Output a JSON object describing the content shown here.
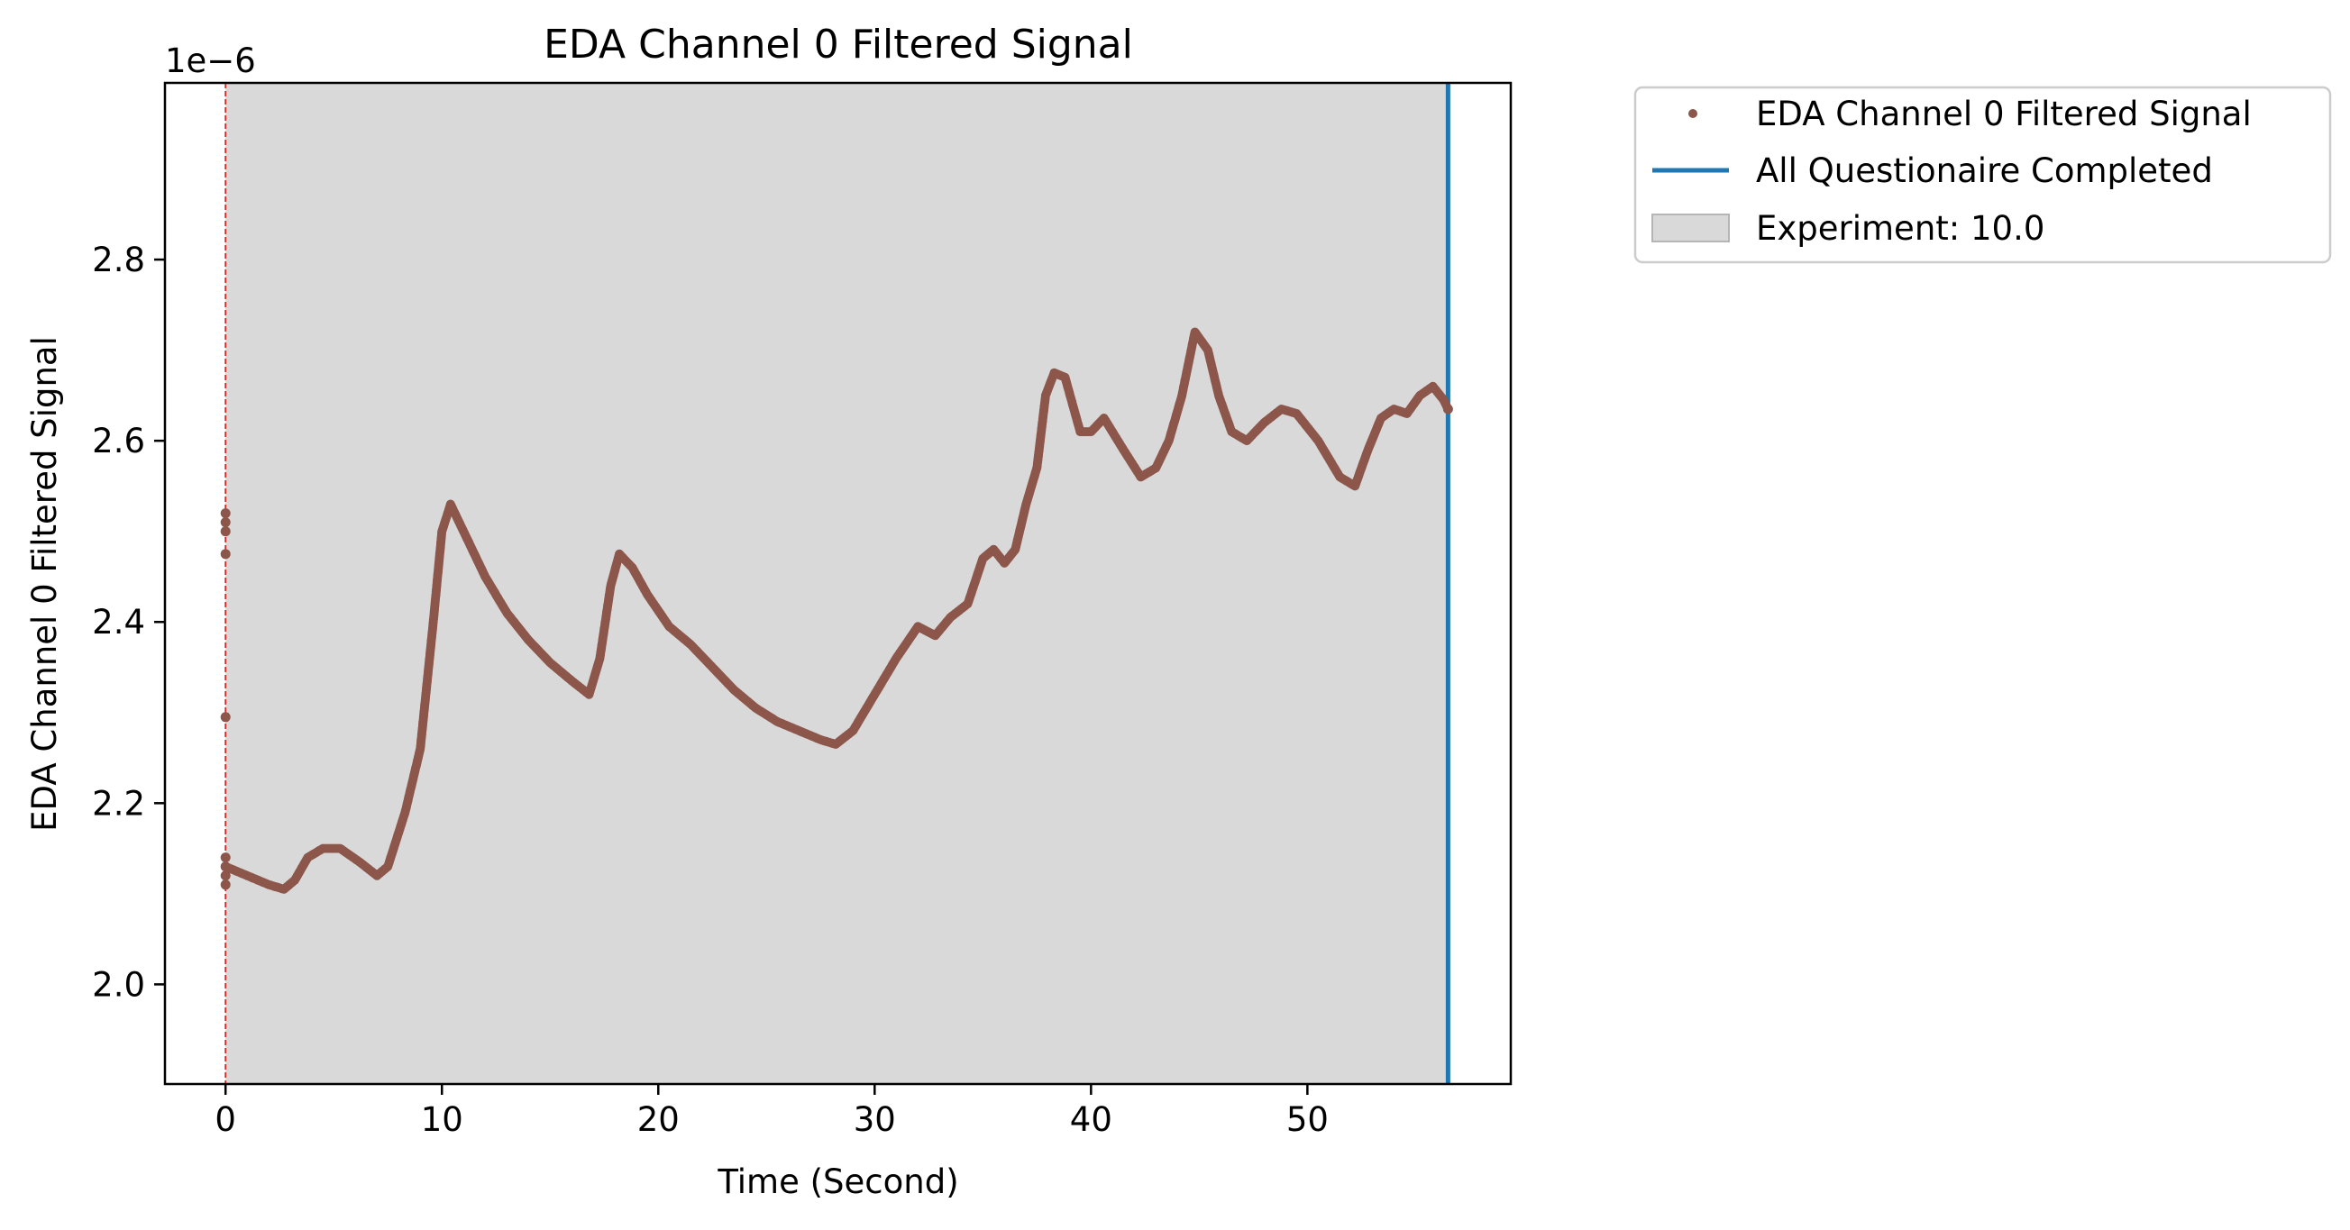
{
  "chart_data": {
    "type": "scatter",
    "title": "EDA Channel 0 Filtered Signal",
    "xlabel": "Time (Second)",
    "ylabel": "EDA Channel 0 Filtered Signal",
    "y_offset_label": "1e−6",
    "xlim": [
      -2.8,
      59.4
    ],
    "ylim": [
      1.89,
      2.995
    ],
    "x_ticks": [
      0,
      10,
      20,
      30,
      40,
      50
    ],
    "x_tick_labels": [
      "0",
      "10",
      "20",
      "30",
      "40",
      "50"
    ],
    "y_ticks": [
      2.0,
      2.2,
      2.4,
      2.6,
      2.8
    ],
    "y_tick_labels": [
      "2.0",
      "2.2",
      "2.4",
      "2.6",
      "2.8"
    ],
    "grid": false,
    "legend_placement": "outside-top-right",
    "shaded_region": {
      "label": "Experiment: 10.0",
      "x_start": 0.0,
      "x_end": 56.5,
      "color": "#d9d9d9"
    },
    "vertical_lines": [
      {
        "x": 0.0,
        "style": "dashed",
        "color": "#d62728",
        "in_legend": false
      },
      {
        "x": 56.5,
        "style": "solid",
        "color": "#1f77b4",
        "label": "All Questionaire Completed",
        "in_legend": true
      }
    ],
    "series": [
      {
        "name": "EDA Channel 0 Filtered Signal",
        "color": "#8c564b",
        "marker": "point",
        "points": [
          [
            0.0,
            2.51
          ],
          [
            0.0,
            2.52
          ],
          [
            0.0,
            2.5
          ],
          [
            0.0,
            2.475
          ],
          [
            0.0,
            2.295
          ],
          [
            0.0,
            2.14
          ],
          [
            0.0,
            2.13
          ],
          [
            0.0,
            2.12
          ],
          [
            0.0,
            2.11
          ]
        ],
        "curve": [
          [
            0.0,
            2.13
          ],
          [
            1.0,
            2.12
          ],
          [
            2.0,
            2.11
          ],
          [
            2.7,
            2.105
          ],
          [
            3.2,
            2.115
          ],
          [
            3.8,
            2.14
          ],
          [
            4.5,
            2.15
          ],
          [
            5.3,
            2.15
          ],
          [
            6.2,
            2.135
          ],
          [
            7.0,
            2.12
          ],
          [
            7.5,
            2.13
          ],
          [
            8.3,
            2.19
          ],
          [
            9.0,
            2.26
          ],
          [
            9.6,
            2.4
          ],
          [
            10.0,
            2.5
          ],
          [
            10.4,
            2.53
          ],
          [
            11.0,
            2.5
          ],
          [
            12.0,
            2.45
          ],
          [
            13.0,
            2.41
          ],
          [
            14.0,
            2.38
          ],
          [
            15.0,
            2.355
          ],
          [
            16.0,
            2.335
          ],
          [
            16.8,
            2.32
          ],
          [
            17.3,
            2.36
          ],
          [
            17.8,
            2.44
          ],
          [
            18.2,
            2.475
          ],
          [
            18.8,
            2.46
          ],
          [
            19.5,
            2.43
          ],
          [
            20.5,
            2.395
          ],
          [
            21.5,
            2.375
          ],
          [
            22.5,
            2.35
          ],
          [
            23.5,
            2.325
          ],
          [
            24.5,
            2.305
          ],
          [
            25.5,
            2.29
          ],
          [
            26.5,
            2.28
          ],
          [
            27.5,
            2.27
          ],
          [
            28.2,
            2.265
          ],
          [
            29.0,
            2.28
          ],
          [
            30.0,
            2.32
          ],
          [
            31.0,
            2.36
          ],
          [
            32.0,
            2.395
          ],
          [
            32.8,
            2.385
          ],
          [
            33.5,
            2.405
          ],
          [
            34.3,
            2.42
          ],
          [
            35.0,
            2.47
          ],
          [
            35.5,
            2.48
          ],
          [
            36.0,
            2.465
          ],
          [
            36.5,
            2.48
          ],
          [
            37.0,
            2.53
          ],
          [
            37.5,
            2.57
          ],
          [
            37.9,
            2.65
          ],
          [
            38.3,
            2.675
          ],
          [
            38.8,
            2.67
          ],
          [
            39.5,
            2.61
          ],
          [
            40.0,
            2.61
          ],
          [
            40.6,
            2.625
          ],
          [
            41.5,
            2.59
          ],
          [
            42.3,
            2.56
          ],
          [
            43.0,
            2.57
          ],
          [
            43.6,
            2.6
          ],
          [
            44.2,
            2.65
          ],
          [
            44.8,
            2.72
          ],
          [
            45.4,
            2.7
          ],
          [
            45.9,
            2.65
          ],
          [
            46.5,
            2.61
          ],
          [
            47.2,
            2.6
          ],
          [
            48.0,
            2.62
          ],
          [
            48.8,
            2.635
          ],
          [
            49.5,
            2.63
          ],
          [
            50.5,
            2.6
          ],
          [
            51.5,
            2.56
          ],
          [
            52.2,
            2.55
          ],
          [
            52.8,
            2.59
          ],
          [
            53.4,
            2.625
          ],
          [
            54.0,
            2.635
          ],
          [
            54.6,
            2.63
          ],
          [
            55.2,
            2.65
          ],
          [
            55.8,
            2.66
          ],
          [
            56.3,
            2.645
          ],
          [
            56.5,
            2.635
          ]
        ]
      }
    ]
  }
}
